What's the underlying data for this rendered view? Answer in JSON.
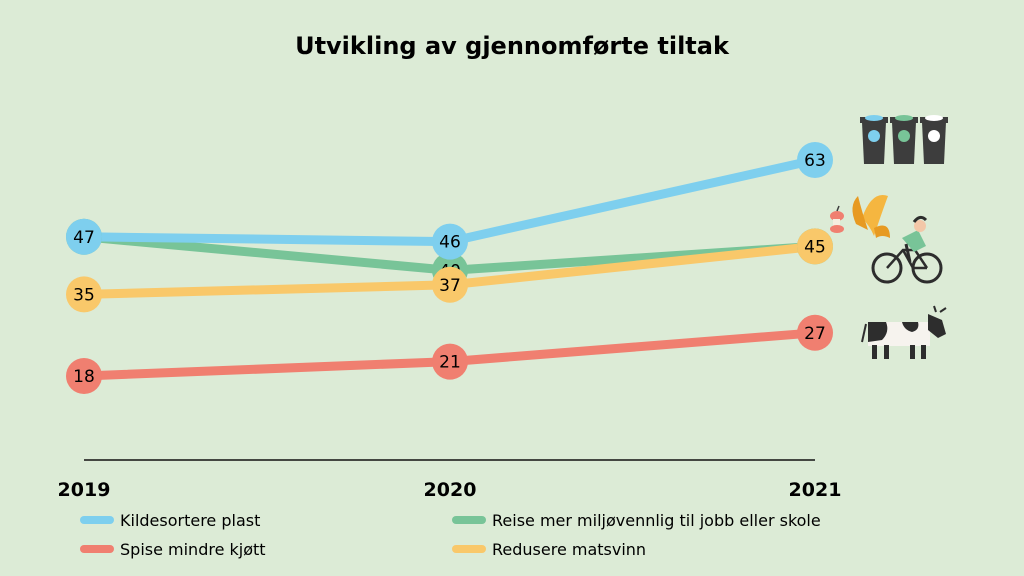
{
  "chart_data": {
    "type": "line",
    "title": "Utvikling av gjennomførte tiltak",
    "categories": [
      "2019",
      "2020",
      "2021"
    ],
    "ylim": [
      0,
      80
    ],
    "grid": false,
    "legend_position": "bottom",
    "series": [
      {
        "name": "Kildesortere plast",
        "values": [
          47,
          46,
          63
        ],
        "color": "#7ecfee",
        "icon": "recycling-bins-icon"
      },
      {
        "name": "Reise mer miljøvennlig til jobb eller skole",
        "values": [
          47,
          40,
          45
        ],
        "color": "#78c498",
        "icon": "cyclist-icon"
      },
      {
        "name": "Spise mindre kjøtt",
        "values": [
          18,
          21,
          27
        ],
        "color": "#f07f70",
        "icon": "cow-icon"
      },
      {
        "name": "Redusere matsvinn",
        "values": [
          35,
          37,
          45
        ],
        "color": "#f9c86a",
        "icon": "food-waste-icon"
      }
    ]
  }
}
